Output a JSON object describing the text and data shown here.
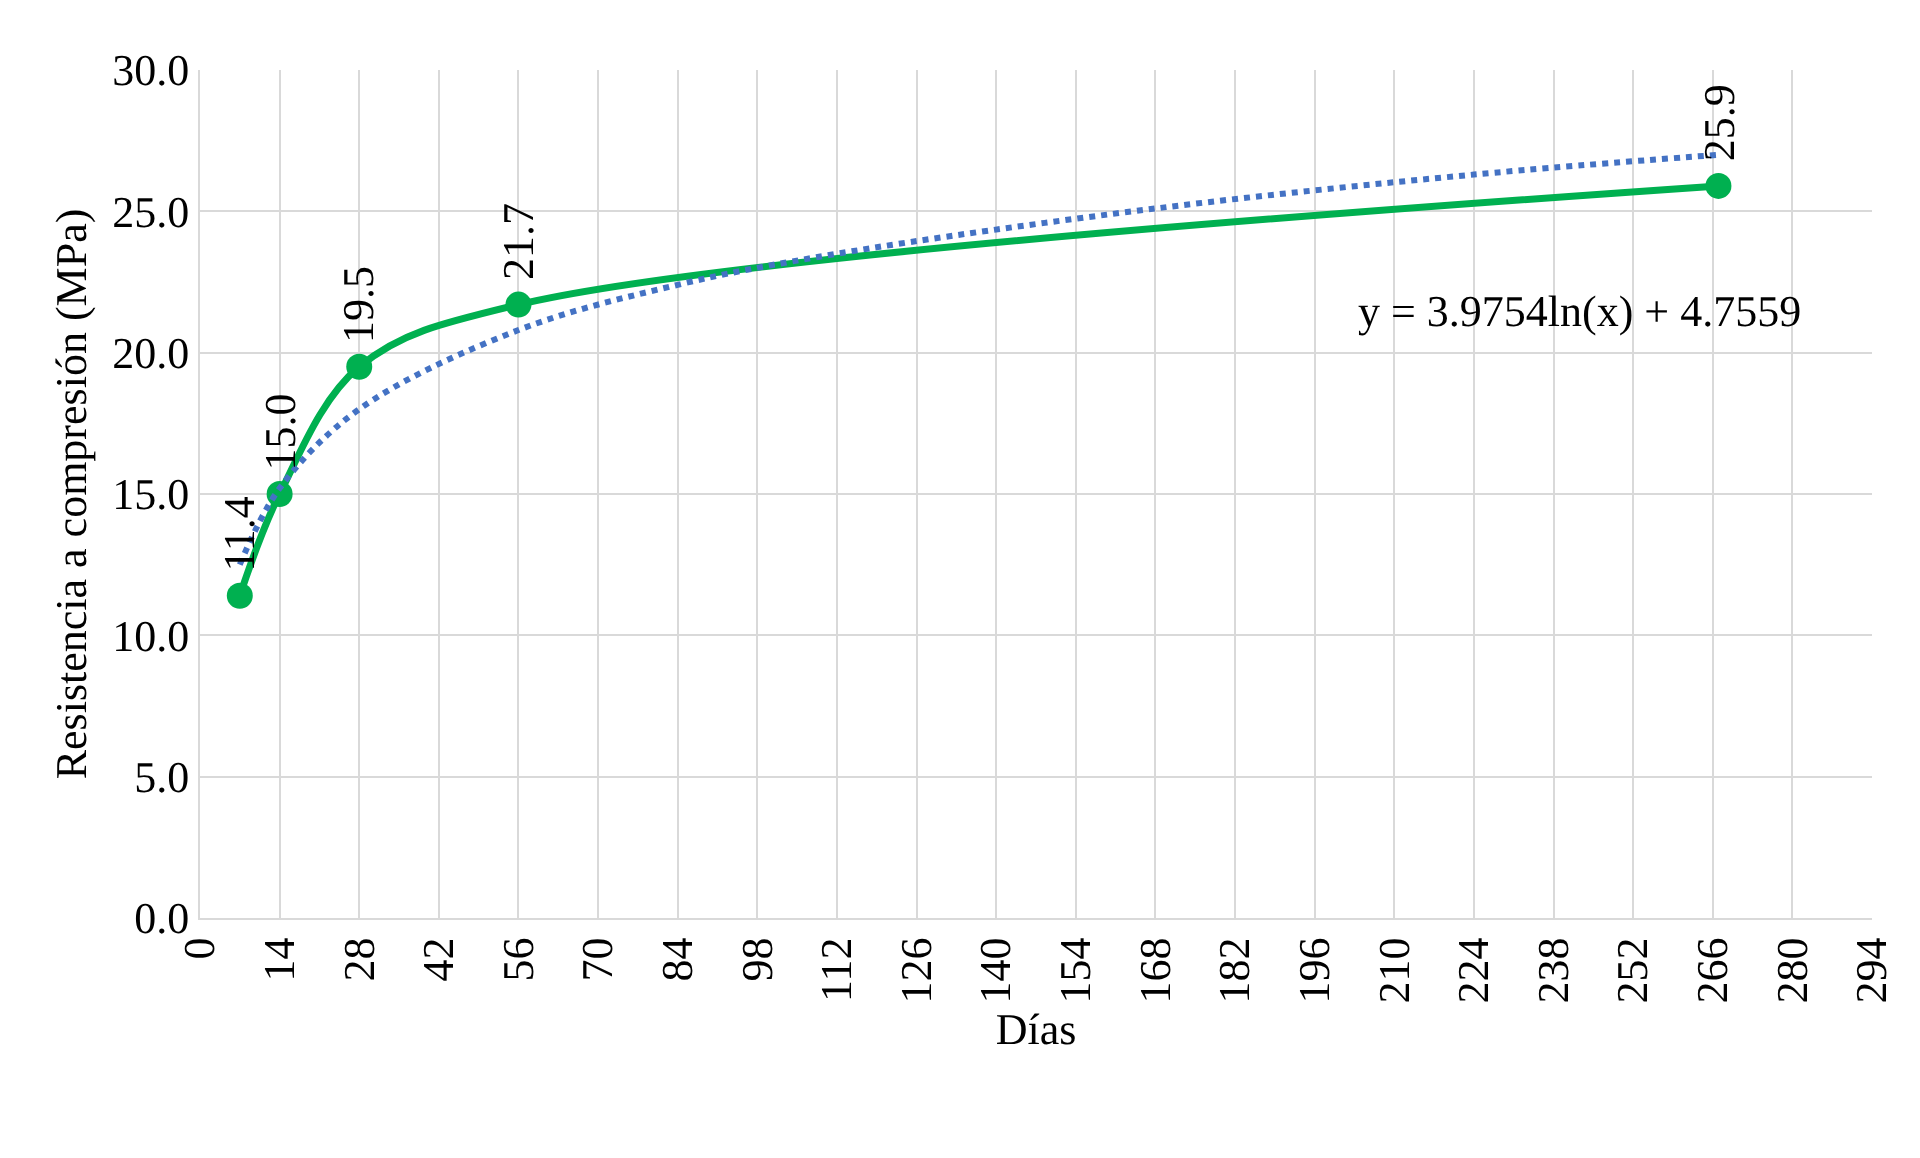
{
  "chart_data": {
    "type": "line",
    "xlabel": "Días",
    "ylabel": "Resistencia a compresión (MPa)",
    "xlim": [
      0,
      294
    ],
    "xticks": [
      0,
      14,
      28,
      42,
      56,
      70,
      84,
      98,
      112,
      126,
      140,
      154,
      168,
      182,
      196,
      210,
      224,
      238,
      252,
      266,
      280,
      294
    ],
    "ylim": [
      0,
      30
    ],
    "yticks": [
      {
        "value": 0,
        "label": "0.0"
      },
      {
        "value": 5,
        "label": "5.0"
      },
      {
        "value": 10,
        "label": "10.0"
      },
      {
        "value": 15,
        "label": "15.0"
      },
      {
        "value": 20,
        "label": "20.0"
      },
      {
        "value": 25,
        "label": "25.0"
      },
      {
        "value": 30,
        "label": "30.0"
      }
    ],
    "grid": true,
    "series": [
      {
        "color": "#00b050",
        "x": [
          7,
          14,
          28,
          56,
          267
        ],
        "values": [
          11.4,
          15.0,
          19.5,
          21.7,
          25.9
        ],
        "value_labels": [
          "11.4",
          "15.0",
          "19.5",
          "21.7",
          "25.9"
        ],
        "marker": "circle",
        "line_style": "solid"
      },
      {
        "color": "#4472c4",
        "x": [
          7,
          14,
          28,
          56,
          84,
          112,
          168,
          224,
          267
        ],
        "values": [
          12.5,
          15.2,
          18.0,
          20.8,
          22.4,
          23.5,
          25.1,
          26.3,
          27.0
        ],
        "marker": "none",
        "line_style": "dotted"
      }
    ],
    "annotations": [
      "y = 3.9754ln(x) + 4.7559"
    ]
  }
}
